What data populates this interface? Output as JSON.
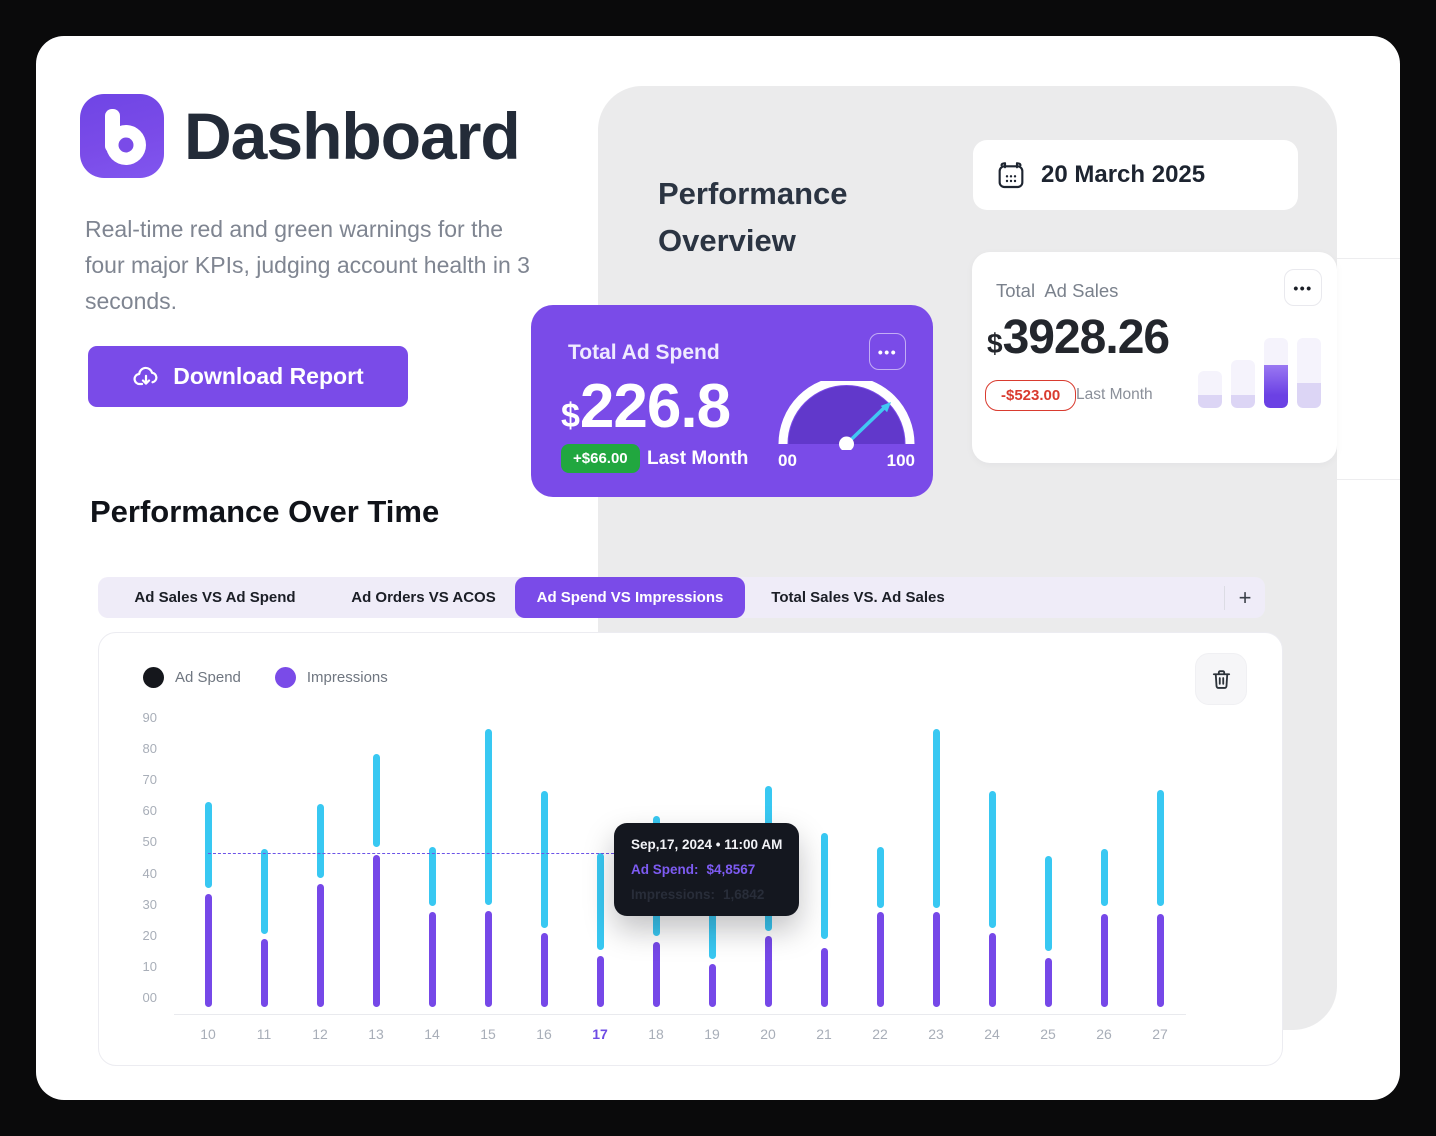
{
  "colors": {
    "accent": "#7A4BE8",
    "bar_purple": "#7648E8",
    "bar_cyan": "#38C8F2",
    "green": "#21A73F",
    "red": "#D93B2F"
  },
  "header": {
    "app_title": "Dashboard",
    "subtitle": "Real-time red and green warnings for the four major KPIs, judging account health in 3 seconds.",
    "download_label": "Download Report"
  },
  "overview": {
    "title_line1": "Performance",
    "title_line2": "Overview",
    "date": "20 March 2025",
    "spend_card": {
      "label": "Total Ad Spend",
      "currency": "$",
      "value": "226.8",
      "delta": "+$66.00",
      "period": "Last Month",
      "menu": "•••",
      "gauge": {
        "min_label": "00",
        "max_label": "100"
      }
    },
    "sales_card": {
      "label": "Total  Ad Sales",
      "currency": "$",
      "value": "3928.26",
      "delta": "-$523.00",
      "period": "Last Month",
      "menu": "•••",
      "spark_bars": [
        {
          "h": 37,
          "base": 13,
          "accent": false
        },
        {
          "h": 48,
          "base": 13,
          "accent": false
        },
        {
          "h": 70,
          "base": 43,
          "accent": true
        },
        {
          "h": 70,
          "base": 25,
          "accent": false
        }
      ]
    }
  },
  "performance": {
    "title": "Performance Over Time",
    "tabs": [
      {
        "label": "Ad Sales VS Ad Spend",
        "active": false
      },
      {
        "label": "Ad Orders VS ACOS",
        "active": false
      },
      {
        "label": "Ad Spend VS Impressions",
        "active": true
      },
      {
        "label": "Total Sales VS. Ad Sales",
        "active": false
      }
    ],
    "add_tab_label": "+"
  },
  "chart": {
    "legend": [
      {
        "label": "Ad Spend",
        "dot_color": "#15171C"
      },
      {
        "label": "Impressions",
        "dot_color": "#7A4BE8"
      }
    ],
    "tooltip": {
      "title": "Sep,17, 2024 • 11:00 AM",
      "rows": [
        {
          "label": "Ad Spend:",
          "value": "$4,8567"
        },
        {
          "label": "Impressions:",
          "value": "1,6842"
        }
      ]
    }
  },
  "chart_data": {
    "type": "bar",
    "title": "",
    "xlabel": "",
    "ylabel": "",
    "x_labels": [
      "10",
      "11",
      "12",
      "13",
      "14",
      "15",
      "16",
      "17",
      "18",
      "19",
      "20",
      "21",
      "22",
      "23",
      "24",
      "25",
      "26",
      "27"
    ],
    "highlighted_x": "17",
    "y_ticks": [
      "00",
      "10",
      "20",
      "30",
      "40",
      "50",
      "60",
      "70",
      "80",
      "90"
    ],
    "ylim": [
      0,
      90
    ],
    "grid": false,
    "legend_position": "top-left",
    "series": [
      {
        "name": "Ad Spend",
        "color": "#7648E8",
        "ranges": [
          [
            0,
            33.5
          ],
          [
            0,
            19
          ],
          [
            0,
            36.5
          ],
          [
            0,
            46
          ],
          [
            0,
            27.5
          ],
          [
            0,
            28
          ],
          [
            0,
            21
          ],
          [
            0,
            13.5
          ],
          [
            0,
            18
          ],
          [
            0,
            11
          ],
          [
            0,
            20
          ],
          [
            0,
            16
          ],
          [
            0,
            27.5
          ],
          [
            0,
            27.5
          ],
          [
            0,
            21
          ],
          [
            0,
            13
          ],
          [
            0,
            27
          ],
          [
            0,
            27
          ]
        ]
      },
      {
        "name": "Impressions",
        "color": "#38C8F2",
        "ranges": [
          [
            35.5,
            63
          ],
          [
            20.5,
            48
          ],
          [
            38.5,
            62.5
          ],
          [
            48.5,
            78.5
          ],
          [
            29.5,
            48.5
          ],
          [
            30,
            86.5
          ],
          [
            22.5,
            66.5
          ],
          [
            15.5,
            46.5
          ],
          [
            20,
            58.5
          ],
          [
            12.5,
            51
          ],
          [
            21.5,
            68
          ],
          [
            19,
            53
          ],
          [
            29,
            48.5
          ],
          [
            29,
            86.5
          ],
          [
            22.5,
            66.5
          ],
          [
            15,
            45.5
          ],
          [
            29.5,
            48
          ],
          [
            29.5,
            67
          ]
        ]
      }
    ],
    "reference_line": {
      "value": 46.5,
      "style": "dashed",
      "color": "#6C53E8"
    }
  }
}
